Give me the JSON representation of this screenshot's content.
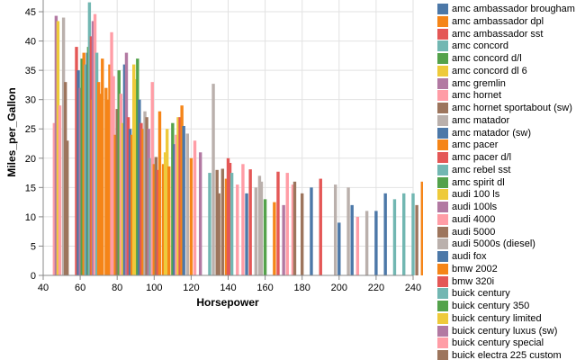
{
  "chart_data": {
    "type": "bar",
    "xlabel": "Horsepower",
    "ylabel": "Miles_per_Gallon",
    "xlim": [
      40,
      240
    ],
    "ylim": [
      0,
      47
    ],
    "x_ticks": [
      40,
      60,
      80,
      100,
      120,
      140,
      160,
      180,
      200,
      220,
      240
    ],
    "y_ticks": [
      0,
      5,
      10,
      15,
      20,
      25,
      30,
      35,
      40,
      45
    ],
    "grid": true,
    "legend_position": "right",
    "palette": [
      "#4c78a8",
      "#f58518",
      "#e45756",
      "#72b7b2",
      "#54a24b",
      "#eeca3b",
      "#b279a2",
      "#ff9da6",
      "#9d755d",
      "#bab0ac"
    ],
    "legend": [
      "amc ambassador brougham",
      "amc ambassador dpl",
      "amc ambassador sst",
      "amc concord",
      "amc concord d/l",
      "amc concord dl 6",
      "amc gremlin",
      "amc hornet",
      "amc hornet sportabout (sw)",
      "amc matador",
      "amc matador (sw)",
      "amc pacer",
      "amc pacer d/l",
      "amc rebel sst",
      "amc spirit dl",
      "audi 100 ls",
      "audi 100ls",
      "audi 4000",
      "audi 5000",
      "audi 5000s (diesel)",
      "audi fox",
      "bmw 2002",
      "bmw 320i",
      "buick century",
      "buick century 350",
      "buick century limited",
      "buick century luxus (sw)",
      "buick century special",
      "buick electra 225 custom"
    ],
    "bars": [
      [
        46,
        26,
        7
      ],
      [
        47,
        44.3,
        6
      ],
      [
        48,
        43.4,
        5
      ],
      [
        49,
        29,
        7
      ],
      [
        51,
        44,
        9
      ],
      [
        52,
        33,
        8
      ],
      [
        53,
        23,
        8
      ],
      [
        58,
        39,
        2
      ],
      [
        59,
        35,
        0
      ],
      [
        60,
        32,
        6
      ],
      [
        61,
        37,
        4
      ],
      [
        62,
        38,
        1
      ],
      [
        63,
        36,
        3
      ],
      [
        64,
        38,
        0
      ],
      [
        64.5,
        39,
        4
      ],
      [
        65,
        46.6,
        3
      ],
      [
        66,
        40.8,
        2
      ],
      [
        66.5,
        30,
        1
      ],
      [
        67,
        43.4,
        6
      ],
      [
        68,
        44.6,
        7
      ],
      [
        69,
        38,
        3
      ],
      [
        70,
        33,
        1
      ],
      [
        71,
        31,
        1
      ],
      [
        72,
        37,
        1
      ],
      [
        74,
        32,
        1
      ],
      [
        75,
        30,
        1
      ],
      [
        76,
        36,
        1
      ],
      [
        77,
        41.5,
        7
      ],
      [
        78,
        34,
        7
      ],
      [
        79,
        24,
        1
      ],
      [
        80,
        28.4,
        8
      ],
      [
        81,
        35,
        4
      ],
      [
        82,
        31,
        7
      ],
      [
        83,
        26,
        5
      ],
      [
        84,
        36,
        0
      ],
      [
        85,
        38,
        6
      ],
      [
        86,
        27,
        2
      ],
      [
        87,
        25,
        0
      ],
      [
        88,
        24,
        1
      ],
      [
        89,
        36,
        5
      ],
      [
        90,
        33.5,
        5
      ],
      [
        91,
        37,
        4
      ],
      [
        92,
        30,
        0
      ],
      [
        93,
        26,
        2
      ],
      [
        94,
        25,
        1
      ],
      [
        95,
        28,
        9
      ],
      [
        96,
        27,
        8
      ],
      [
        97,
        25,
        6
      ],
      [
        98,
        20,
        3
      ],
      [
        99,
        33,
        7
      ],
      [
        100,
        19,
        1
      ],
      [
        101,
        20.2,
        8
      ],
      [
        102,
        18,
        2
      ],
      [
        103,
        28,
        1
      ],
      [
        105,
        19,
        1
      ],
      [
        106,
        21,
        5
      ],
      [
        107,
        25,
        5
      ],
      [
        108,
        18.6,
        1
      ],
      [
        110,
        26,
        4
      ],
      [
        111,
        22.4,
        0
      ],
      [
        112,
        24,
        7
      ],
      [
        113,
        27,
        5
      ],
      [
        114,
        27,
        2
      ],
      [
        115,
        29,
        1
      ],
      [
        116,
        25.5,
        0
      ],
      [
        118,
        24.2,
        9
      ],
      [
        120,
        20,
        1
      ],
      [
        122,
        23,
        7
      ],
      [
        125,
        21,
        6
      ],
      [
        130,
        17.5,
        3
      ],
      [
        132,
        32.7,
        9
      ],
      [
        134,
        18,
        8
      ],
      [
        135,
        14,
        8
      ],
      [
        137,
        18.2,
        8
      ],
      [
        139,
        16.5,
        1
      ],
      [
        140,
        20,
        2
      ],
      [
        141,
        19.2,
        2
      ],
      [
        142,
        17.5,
        3
      ],
      [
        145,
        15.5,
        7
      ],
      [
        148,
        19,
        7
      ],
      [
        150,
        14,
        0
      ],
      [
        152,
        18.1,
        2
      ],
      [
        155,
        15,
        9
      ],
      [
        157,
        17,
        9
      ],
      [
        158,
        16,
        9
      ],
      [
        160,
        13,
        4
      ],
      [
        165,
        12.5,
        1
      ],
      [
        167,
        17.7,
        2
      ],
      [
        170,
        12,
        6
      ],
      [
        172,
        17.5,
        7
      ],
      [
        175,
        15.5,
        7
      ],
      [
        176,
        16,
        8
      ],
      [
        180,
        14,
        8
      ],
      [
        185,
        15,
        0
      ],
      [
        190,
        16.5,
        2
      ],
      [
        198,
        15.5,
        9
      ],
      [
        200,
        9,
        0
      ],
      [
        205,
        15,
        9
      ],
      [
        207,
        12,
        0
      ],
      [
        210,
        10,
        7
      ],
      [
        215,
        11,
        9
      ],
      [
        220,
        11,
        0
      ],
      [
        225,
        14,
        0
      ],
      [
        230,
        13,
        3
      ],
      [
        235,
        14,
        3
      ],
      [
        240,
        14,
        3
      ],
      [
        242,
        12,
        8
      ],
      [
        245,
        16,
        1
      ]
    ]
  }
}
